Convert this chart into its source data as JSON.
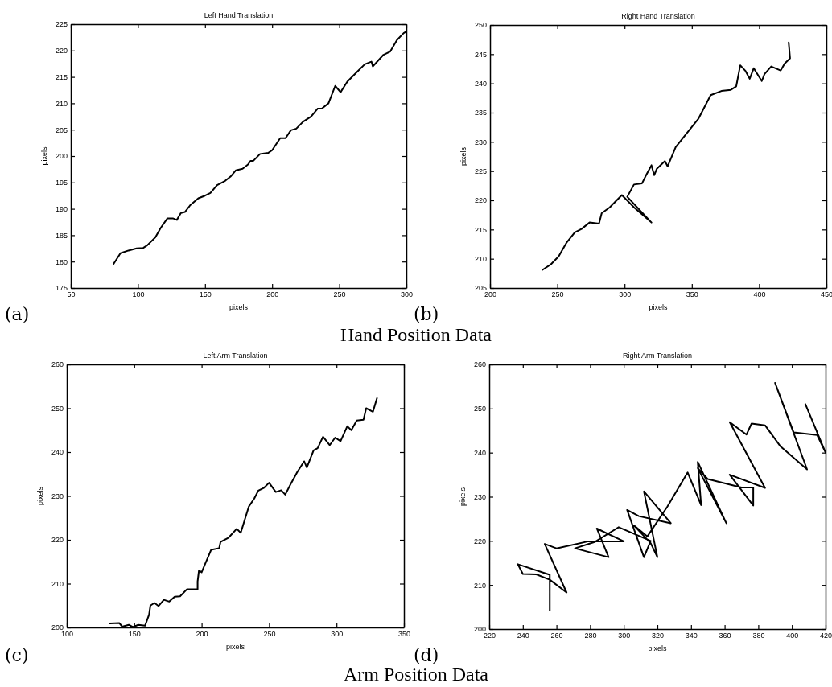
{
  "chart_data": [
    {
      "type": "line",
      "title": "Left Hand Translation",
      "xlabel": "pixels",
      "ylabel": "pixels",
      "annotations": [
        "(a)",
        "Hand Position Data"
      ],
      "line_style": "solid",
      "xlim": [
        50,
        300
      ],
      "xticks": [
        50,
        100,
        150,
        200,
        250,
        300
      ],
      "ylim": [
        175,
        225
      ],
      "yticks": [
        175,
        180,
        185,
        190,
        195,
        200,
        205,
        210,
        215,
        220,
        225
      ],
      "series": [
        {
          "color": "#000000",
          "x": [
            82,
            87,
            93,
            99,
            104,
            107,
            113,
            117,
            122,
            126,
            129,
            132,
            135,
            139,
            145,
            150,
            154,
            159,
            165,
            169,
            173,
            178,
            182,
            184,
            186,
            191,
            197,
            200,
            206,
            210,
            214,
            218,
            223,
            229,
            234,
            237,
            242,
            247,
            251,
            256,
            263,
            269,
            274,
            275,
            283,
            288,
            293,
            298,
            300
          ],
          "values": [
            179.6,
            181.6,
            182.1,
            182.5,
            182.6,
            183.1,
            184.6,
            186.4,
            188.2,
            188.2,
            187.9,
            189.2,
            189.4,
            190.7,
            192.0,
            192.5,
            193.0,
            194.5,
            195.3,
            196.1,
            197.3,
            197.6,
            198.4,
            199.1,
            199.1,
            200.4,
            200.6,
            201.1,
            203.4,
            203.4,
            204.9,
            205.2,
            206.5,
            207.5,
            209.0,
            209.0,
            210.0,
            213.3,
            212.1,
            214.1,
            215.9,
            217.4,
            217.9,
            217.0,
            219.2,
            219.8,
            222.0,
            223.3,
            223.6
          ]
        }
      ]
    },
    {
      "type": "line",
      "title": "Right Hand Translation",
      "xlabel": "pixels",
      "ylabel": "pixels",
      "annotations": [
        "(b)"
      ],
      "line_style": "solid",
      "xlim": [
        200,
        450
      ],
      "xticks": [
        200,
        250,
        300,
        350,
        400,
        450
      ],
      "ylim": [
        205,
        250
      ],
      "yticks": [
        205,
        210,
        215,
        220,
        225,
        230,
        235,
        240,
        245,
        250
      ],
      "series": [
        {
          "color": "#000000",
          "x": [
            239,
            245,
            251,
            257,
            263,
            268,
            274,
            281,
            283,
            289,
            298,
            307,
            320,
            302,
            307,
            313,
            316,
            320,
            322,
            324,
            330,
            332,
            338,
            346,
            355,
            364,
            372,
            379,
            383,
            386,
            390,
            393,
            396,
            402,
            404,
            409,
            416,
            419,
            423,
            422
          ],
          "values": [
            208.1,
            209.0,
            210.4,
            212.8,
            214.5,
            215.1,
            216.2,
            216.0,
            217.8,
            218.8,
            220.9,
            218.8,
            216.2,
            220.6,
            222.7,
            222.9,
            224.3,
            226.0,
            224.3,
            225.4,
            226.7,
            225.8,
            229.1,
            231.4,
            234.0,
            238.0,
            238.7,
            238.9,
            239.5,
            243.1,
            242.1,
            240.8,
            242.6,
            240.4,
            241.6,
            242.9,
            242.2,
            243.4,
            244.3,
            247.0
          ]
        }
      ]
    },
    {
      "type": "line",
      "title": "Left Arm Translation",
      "xlabel": "pixels",
      "ylabel": "pixels",
      "annotations": [
        "(c)",
        "Arm Position Data"
      ],
      "line_style": "solid",
      "xlim": [
        100,
        350
      ],
      "xticks": [
        100,
        150,
        200,
        250,
        300,
        350
      ],
      "ylim": [
        200,
        260
      ],
      "yticks": [
        200,
        210,
        220,
        230,
        240,
        250,
        260
      ],
      "series": [
        {
          "color": "#000000",
          "x": [
            132,
            139,
            141,
            146,
            149,
            153,
            158,
            161,
            162,
            165,
            168,
            172,
            176,
            180,
            184,
            189,
            197,
            197,
            198,
            200,
            207,
            213,
            214,
            220,
            226,
            229,
            235,
            239,
            242,
            246,
            250,
            255,
            259,
            262,
            266,
            271,
            276,
            278,
            283,
            286,
            290,
            295,
            299,
            303,
            308,
            311,
            315,
            320,
            322,
            327,
            330
          ],
          "values": [
            200.9,
            201.0,
            200.2,
            200.6,
            200.1,
            200.6,
            200.4,
            202.9,
            205.0,
            205.6,
            204.9,
            206.3,
            205.9,
            207.0,
            207.1,
            208.7,
            208.7,
            210.5,
            213.0,
            212.6,
            217.7,
            218.1,
            219.5,
            220.5,
            222.5,
            221.6,
            227.6,
            229.4,
            231.2,
            231.8,
            233.0,
            230.9,
            231.3,
            230.3,
            232.7,
            235.5,
            237.9,
            236.5,
            240.4,
            240.9,
            243.5,
            241.6,
            243.3,
            242.5,
            245.9,
            245.0,
            247.2,
            247.4,
            250.0,
            249.2,
            252.3
          ]
        }
      ]
    },
    {
      "type": "line",
      "title": "Right Arm Translation",
      "xlabel": "pixels",
      "ylabel": "pixels",
      "annotations": [
        "(d)"
      ],
      "line_style": "solid",
      "xlim": [
        220,
        420
      ],
      "xticks": [
        220,
        240,
        260,
        280,
        300,
        320,
        340,
        360,
        380,
        400,
        420
      ],
      "ylim": [
        200,
        260
      ],
      "yticks": [
        200,
        210,
        220,
        230,
        240,
        250,
        260
      ],
      "series": [
        {
          "color": "#000000",
          "x": [
            256,
            256,
            237,
            240,
            248,
            256,
            266,
            253,
            260,
            279,
            300,
            284,
            291,
            271,
            283,
            297,
            316,
            312,
            302,
            309,
            328,
            312,
            320,
            316,
            306,
            314,
            326,
            338,
            346,
            344,
            361,
            344,
            350,
            370,
            377,
            377,
            363,
            384,
            363,
            373,
            376,
            384,
            393,
            409,
            390,
            401,
            415,
            420,
            408
          ],
          "values": [
            204.2,
            212.3,
            214.7,
            212.5,
            212.4,
            211.2,
            208.3,
            219.3,
            218.3,
            219.9,
            219.9,
            222.8,
            216.3,
            218.3,
            219.8,
            223.1,
            220.0,
            216.3,
            227.0,
            225.6,
            224.0,
            231.2,
            216.3,
            219.5,
            223.5,
            221.0,
            227.8,
            235.5,
            228.1,
            237.9,
            224.0,
            236.5,
            234.0,
            232.1,
            232.1,
            228.0,
            235.0,
            232.0,
            246.9,
            244.1,
            246.6,
            246.2,
            241.5,
            236.2,
            255.8,
            244.6,
            244.0,
            240.0,
            251.0
          ]
        }
      ]
    }
  ]
}
